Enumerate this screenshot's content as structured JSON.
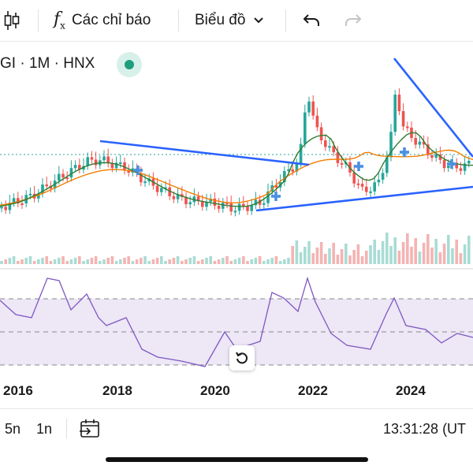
{
  "toolbar": {
    "candle_icon": "candlestick-icon",
    "indicators_icon": "fx-icon",
    "indicators_label": "Các chỉ báo",
    "chart_type_label": "Biểu đồ",
    "chart_type_icon": "chevron-down-icon",
    "undo_icon": "undo-icon",
    "redo_icon": "redo-icon"
  },
  "legend": {
    "symbol_text": "GI · 1M · HNX",
    "status": "market-open"
  },
  "colors": {
    "up": "#26a69a",
    "down": "#ef5350",
    "trendline": "#2962ff",
    "ma_fast": "#2e7d32",
    "ma_slow": "#f57c00",
    "rsi": "#7e57c2",
    "rsi_band": "#ede7f6"
  },
  "x_axis": [
    "2016",
    "2018",
    "2020",
    "2022",
    "2024"
  ],
  "bottom": {
    "range_5y": "5n",
    "range_1y": "1n",
    "goto_date_icon": "calendar-goto-icon",
    "clock": "13:31:28 (UT"
  },
  "reset_icon": "reset-icon"
}
